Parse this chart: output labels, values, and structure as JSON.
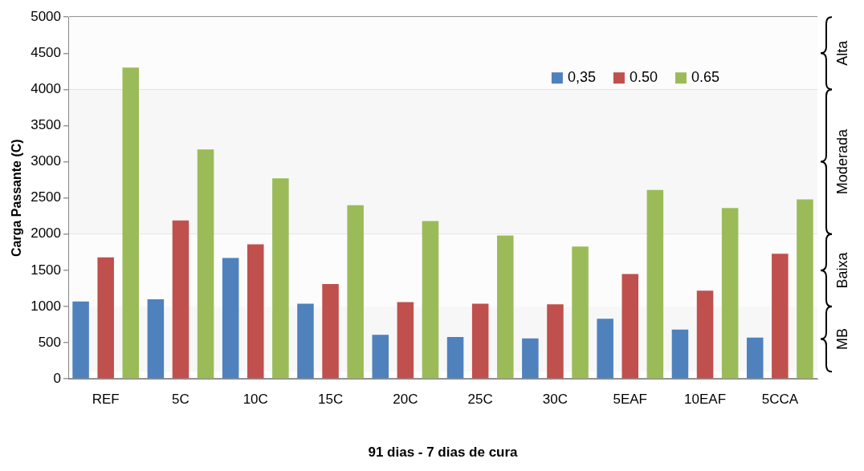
{
  "chart_data": {
    "type": "bar",
    "xlabel": "91 dias - 7 dias de cura",
    "ylabel": "Carga Passante (C)",
    "categories": [
      "REF",
      "5C",
      "10C",
      "15C",
      "20C",
      "25C",
      "30C",
      "5EAF",
      "10EAF",
      "5CCA"
    ],
    "series": [
      {
        "name": "0,35",
        "color": "#4f81bd",
        "values": [
          1070,
          1100,
          1670,
          1040,
          610,
          580,
          560,
          830,
          680,
          570
        ]
      },
      {
        "name": "0.50",
        "color": "#c0504d",
        "values": [
          1680,
          2190,
          1860,
          1310,
          1060,
          1040,
          1030,
          1450,
          1220,
          1730
        ]
      },
      {
        "name": "0.65",
        "color": "#9bbb59",
        "values": [
          4300,
          3170,
          2770,
          2400,
          2180,
          1980,
          1830,
          2610,
          2360,
          2480
        ]
      }
    ],
    "ylim": [
      0,
      5000
    ],
    "yticks": [
      0,
      500,
      1000,
      1500,
      2000,
      2500,
      3000,
      3500,
      4000,
      4500,
      5000
    ],
    "grid": "y",
    "legend": "top right",
    "bands": [
      {
        "axis": "y",
        "from": 100,
        "to": 1000,
        "label": "MB",
        "color": "#f7f7f7"
      },
      {
        "axis": "y",
        "from": 1000,
        "to": 2000,
        "label": "Baixa",
        "color": "#fcfcfc"
      },
      {
        "axis": "y",
        "from": 2000,
        "to": 4000,
        "label": "Moderada",
        "color": "#f7f7f7"
      },
      {
        "axis": "y",
        "from": 4000,
        "to": 5000,
        "label": "Alta",
        "color": "#fcfcfc"
      }
    ]
  }
}
